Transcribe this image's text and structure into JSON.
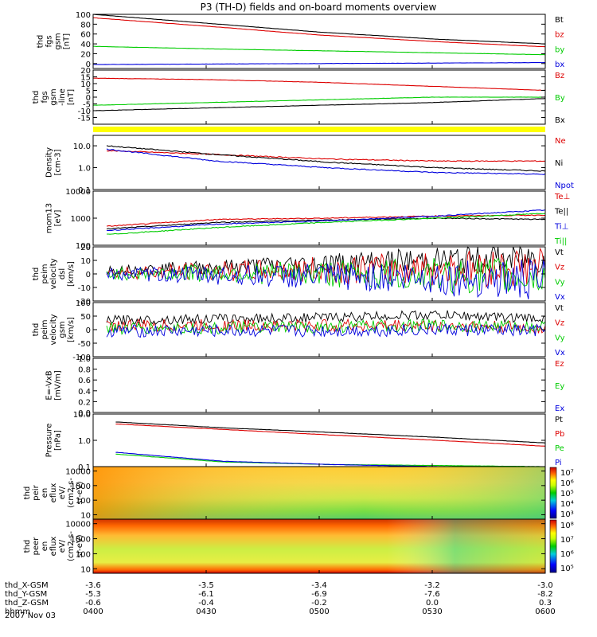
{
  "title": "P3 (TH-D) fields and on-board moments overview",
  "colors": {
    "black": "#000000",
    "red": "#dd0000",
    "green": "#00cc00",
    "blue": "#0000dd",
    "yellow": "#ffff00"
  },
  "panels": [
    {
      "id": "fgs",
      "ylabel": [
        "thd",
        "fgs",
        "gsm",
        "[nT]"
      ],
      "scale": "linear",
      "ylim": [
        -10,
        100
      ],
      "ticks": [
        "100",
        "80",
        "60",
        "40",
        "20",
        "0"
      ],
      "legend": [
        {
          "name": "Bt",
          "color": "#000000"
        },
        {
          "name": "bz",
          "color": "#dd0000"
        },
        {
          "name": "by",
          "color": "#00cc00"
        },
        {
          "name": "bx",
          "color": "#0000dd"
        }
      ]
    },
    {
      "id": "fgs-dsl",
      "ylabel": [
        "thd",
        "fgs",
        "gsm",
        "-line",
        "[nT]"
      ],
      "scale": "linear",
      "ylim": [
        -20,
        20
      ],
      "ticks": [
        "20",
        "15",
        "10",
        "5",
        "0",
        "-5",
        "-10",
        "-15"
      ],
      "legend": [
        {
          "name": "Bz",
          "color": "#dd0000"
        },
        {
          "name": "By",
          "color": "#00cc00"
        },
        {
          "name": "Bx",
          "color": "#000000"
        }
      ]
    },
    {
      "id": "density",
      "ylabel": [
        "Density",
        "[cm-3]"
      ],
      "scale": "log",
      "ylim": [
        0.1,
        30
      ],
      "ticks": [
        "10.0",
        "1.0",
        "0.1"
      ],
      "legend": [
        {
          "name": "Ne",
          "color": "#dd0000"
        },
        {
          "name": "Ni",
          "color": "#000000"
        },
        {
          "name": "Npot",
          "color": "#0000dd"
        }
      ]
    },
    {
      "id": "temp",
      "ylabel": [
        "mom13",
        "[eV]"
      ],
      "scale": "log",
      "ylim": [
        100,
        10000
      ],
      "ticks": [
        "10000",
        "1000",
        "100"
      ],
      "legend": [
        {
          "name": "Te⊥",
          "color": "#dd0000"
        },
        {
          "name": "Te||",
          "color": "#000000"
        },
        {
          "name": "Ti⊥",
          "color": "#0000dd"
        },
        {
          "name": "Ti||",
          "color": "#00cc00"
        }
      ]
    },
    {
      "id": "peim-vel",
      "ylabel": [
        "thd",
        "peim",
        "velocity",
        "dsl",
        "[km/s]"
      ],
      "scale": "linear",
      "ylim": [
        -20,
        20
      ],
      "ticks": [
        "20",
        "10",
        "0",
        "-10",
        "-20"
      ],
      "legend": [
        {
          "name": "Vt",
          "color": "#000000"
        },
        {
          "name": "Vz",
          "color": "#dd0000"
        },
        {
          "name": "Vy",
          "color": "#00cc00"
        },
        {
          "name": "Vx",
          "color": "#0000dd"
        }
      ]
    },
    {
      "id": "peim-vel-gsm",
      "ylabel": [
        "thd",
        "peim",
        "velocity",
        "gsm",
        "[km/s]"
      ],
      "scale": "linear",
      "ylim": [
        -100,
        100
      ],
      "ticks": [
        "100",
        "50",
        "0",
        "-50",
        "-100"
      ],
      "legend": [
        {
          "name": "Vt",
          "color": "#000000"
        },
        {
          "name": "Vz",
          "color": "#dd0000"
        },
        {
          "name": "Vy",
          "color": "#00cc00"
        },
        {
          "name": "Vx",
          "color": "#0000dd"
        }
      ]
    },
    {
      "id": "efield",
      "ylabel": [
        "E=-VxB",
        "[mV/m]"
      ],
      "scale": "linear",
      "ylim": [
        0,
        1
      ],
      "ticks": [
        "1.0",
        "0.8",
        "0.6",
        "0.4",
        "0.2",
        "0.0"
      ],
      "legend": [
        {
          "name": "Ez",
          "color": "#dd0000"
        },
        {
          "name": "Ey",
          "color": "#00cc00"
        },
        {
          "name": "Ex",
          "color": "#0000dd"
        }
      ]
    },
    {
      "id": "pressure",
      "ylabel": [
        "Pressure",
        "[nPa]"
      ],
      "scale": "log",
      "ylim": [
        0.1,
        10
      ],
      "ticks": [
        "10.0",
        "1.0",
        "0.1"
      ],
      "legend": [
        {
          "name": "Pt",
          "color": "#000000"
        },
        {
          "name": "Pb",
          "color": "#dd0000"
        },
        {
          "name": "Pe",
          "color": "#00cc00"
        },
        {
          "name": "Pi",
          "color": "#0000dd"
        }
      ]
    },
    {
      "id": "peir",
      "ylabel": [
        "thd",
        "peir",
        "en",
        "eflux",
        "eV/",
        "(cm2-s-",
        "sr-eV)"
      ],
      "scale": "log",
      "ylim": [
        5,
        20000
      ],
      "ticks": [
        "10000",
        "1000",
        "100",
        "10"
      ],
      "colorbar": [
        "10⁷",
        "10⁶",
        "10⁵",
        "10⁴",
        "10³"
      ]
    },
    {
      "id": "peer",
      "ylabel": [
        "thd",
        "peer",
        "en",
        "eflux",
        "eV/",
        "(cm2-s-",
        "sr-eV)"
      ],
      "scale": "log",
      "ylim": [
        5,
        20000
      ],
      "ticks": [
        "10000",
        "1000",
        "100",
        "10"
      ],
      "colorbar": [
        "10⁸",
        "10⁷",
        "10⁶",
        "10⁵"
      ]
    }
  ],
  "footer": {
    "rows": [
      {
        "label": "thd_X-GSM",
        "values": [
          "-3.6",
          "-3.5",
          "-3.4",
          "-3.2",
          "-3.0"
        ]
      },
      {
        "label": "thd_Y-GSM",
        "values": [
          "-5.3",
          "-6.1",
          "-6.9",
          "-7.6",
          "-8.2"
        ]
      },
      {
        "label": "thd_Z-GSM",
        "values": [
          "-0.6",
          "-0.4",
          "-0.2",
          "0.0",
          "0.3"
        ]
      },
      {
        "label": "hhmm",
        "values": [
          "0400",
          "0430",
          "0500",
          "0530",
          "0600"
        ]
      }
    ],
    "date": "2007 Nov 03"
  },
  "chart_data": {
    "type": "line",
    "title": "P3 (TH-D) fields and on-board moments overview",
    "x": [
      "0400",
      "0430",
      "0500",
      "0530",
      "0600"
    ],
    "xlabel": "hhmm",
    "series": [
      {
        "panel": "fgs",
        "name": "Bt",
        "values": [
          100,
          82,
          64,
          50,
          40
        ]
      },
      {
        "panel": "fgs",
        "name": "bz",
        "values": [
          93,
          76,
          58,
          45,
          34
        ]
      },
      {
        "panel": "fgs",
        "name": "by",
        "values": [
          35,
          30,
          26,
          22,
          18
        ]
      },
      {
        "panel": "fgs",
        "name": "bx",
        "values": [
          -2,
          -1,
          0,
          1,
          2
        ]
      },
      {
        "panel": "fgs-dsl",
        "name": "Bz",
        "values": [
          14,
          13,
          11,
          8,
          5
        ]
      },
      {
        "panel": "fgs-dsl",
        "name": "By",
        "values": [
          -6,
          -4,
          -2,
          0,
          0
        ]
      },
      {
        "panel": "fgs-dsl",
        "name": "Bx",
        "values": [
          -10,
          -8,
          -6,
          -4,
          -1
        ]
      },
      {
        "panel": "density",
        "name": "Ne",
        "values": [
          6,
          4,
          2.5,
          2,
          2
        ]
      },
      {
        "panel": "density",
        "name": "Ni",
        "values": [
          10,
          4,
          1.8,
          1,
          0.7
        ]
      },
      {
        "panel": "density",
        "name": "Npot",
        "values": [
          7,
          2,
          1,
          0.6,
          0.5
        ]
      },
      {
        "panel": "temp",
        "name": "Te⊥",
        "values": [
          500,
          900,
          1000,
          1200,
          1300
        ]
      },
      {
        "panel": "temp",
        "name": "Te||",
        "values": [
          400,
          700,
          850,
          1000,
          900
        ]
      },
      {
        "panel": "temp",
        "name": "Ti⊥",
        "values": [
          350,
          600,
          800,
          1200,
          2000
        ]
      },
      {
        "panel": "temp",
        "name": "Ti||",
        "values": [
          250,
          450,
          700,
          1000,
          1500
        ]
      },
      {
        "panel": "peim-vel",
        "name": "Vt",
        "values": [
          3,
          5,
          8,
          10,
          12
        ]
      },
      {
        "panel": "peim-vel",
        "name": "Vz",
        "values": [
          1,
          2,
          3,
          4,
          5
        ]
      },
      {
        "panel": "peim-vel",
        "name": "Vy",
        "values": [
          0,
          1,
          0,
          -1,
          -2
        ]
      },
      {
        "panel": "peim-vel",
        "name": "Vx",
        "values": [
          0,
          -1,
          -2,
          -3,
          -5
        ]
      },
      {
        "panel": "peim-vel-gsm",
        "name": "Vt",
        "values": [
          35,
          40,
          45,
          55,
          40
        ]
      },
      {
        "panel": "peim-vel-gsm",
        "name": "Vz",
        "values": [
          15,
          15,
          15,
          15,
          5
        ]
      },
      {
        "panel": "peim-vel-gsm",
        "name": "Vy",
        "values": [
          5,
          5,
          10,
          15,
          10
        ]
      },
      {
        "panel": "peim-vel-gsm",
        "name": "Vx",
        "values": [
          -5,
          -5,
          -5,
          0,
          -5
        ]
      },
      {
        "panel": "pressure",
        "name": "Pt",
        "values": [
          5,
          3,
          2,
          1.3,
          0.8
        ]
      },
      {
        "panel": "pressure",
        "name": "Pb",
        "values": [
          4.2,
          2.6,
          1.6,
          1,
          0.6
        ]
      },
      {
        "panel": "pressure",
        "name": "Pe",
        "values": [
          0.3,
          0.15,
          0.12,
          0.11,
          0.1
        ]
      },
      {
        "panel": "pressure",
        "name": "Pi",
        "values": [
          0.35,
          0.16,
          0.12,
          0.1,
          0.09
        ]
      }
    ]
  }
}
